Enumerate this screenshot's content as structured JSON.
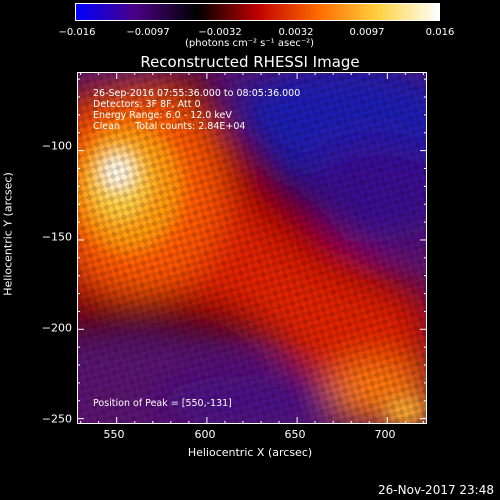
{
  "colorbar": {
    "ticks": [
      "−0.016",
      "−0.0097",
      "−0.0032",
      "0.0032",
      "0.0097",
      "0.016"
    ],
    "units": "(photons cm⁻² s⁻¹ asec⁻²)",
    "colors": [
      "#0000ff",
      "#4b0082",
      "#000000",
      "#c00000",
      "#ff6a00",
      "#ffd23f",
      "#ffffff"
    ]
  },
  "title": "Reconstructed RHESSI Image",
  "info": {
    "line1": "26-Sep-2016 07:55:36.000 to 08:05:36.000",
    "line2": "Detectors: 3F 8F, Att 0",
    "line3": "Energy Range: 6.0 - 12.0 keV",
    "line4": "Clean     Total counts: 2.84E+04",
    "peak": "Position of Peak = [550,-131]"
  },
  "axes": {
    "xlabel": "Heliocentric X (arcsec)",
    "ylabel": "Heliocentric Y (arcsec)",
    "xticks": [
      "550",
      "600",
      "650",
      "700"
    ],
    "yticks": [
      "−100",
      "−150",
      "−200",
      "−250"
    ],
    "xlim": [
      528,
      722
    ],
    "ylim": [
      -253,
      -56
    ]
  },
  "footer": "26-Nov-2017 23:48"
}
